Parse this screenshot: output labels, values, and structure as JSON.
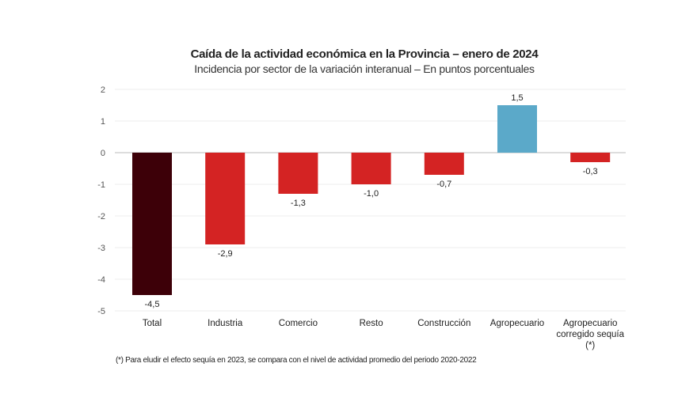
{
  "chart_data": {
    "type": "bar",
    "title": "Caída de la actividad económica en la Provincia – enero de 2024",
    "subtitle": "Incidencia por sector de la variación interanual – En puntos porcentuales",
    "categories": [
      "Total",
      "Industria",
      "Comercio",
      "Resto",
      "Construcción",
      "Agropecuario",
      "Agropecuario corregido sequía (*)"
    ],
    "category_lines": [
      [
        "Total"
      ],
      [
        "Industria"
      ],
      [
        "Comercio"
      ],
      [
        "Resto"
      ],
      [
        "Construcción"
      ],
      [
        "Agropecuario"
      ],
      [
        "Agropecuario",
        "corregido sequía",
        "(*)"
      ]
    ],
    "values": [
      -4.5,
      -2.9,
      -1.3,
      -1.0,
      -0.7,
      1.5,
      -0.3
    ],
    "data_labels": [
      "-4,5",
      "-2,9",
      "-1,3",
      "-1,0",
      "-0,7",
      "1,5",
      "-0,3"
    ],
    "colors": [
      "#3d0008",
      "#d42323",
      "#d42323",
      "#d42323",
      "#d42323",
      "#5ba9c9",
      "#d42323"
    ],
    "yticks": [
      2,
      1,
      0,
      -1,
      -2,
      -3,
      -4,
      -5
    ],
    "ylim": [
      -5,
      2
    ],
    "grid": true,
    "xlabel": "",
    "ylabel": "",
    "footnote": "(*) Para eludir el efecto sequía en 2023, se compara con el nivel de actividad promedio del periodo 2020-2022"
  }
}
